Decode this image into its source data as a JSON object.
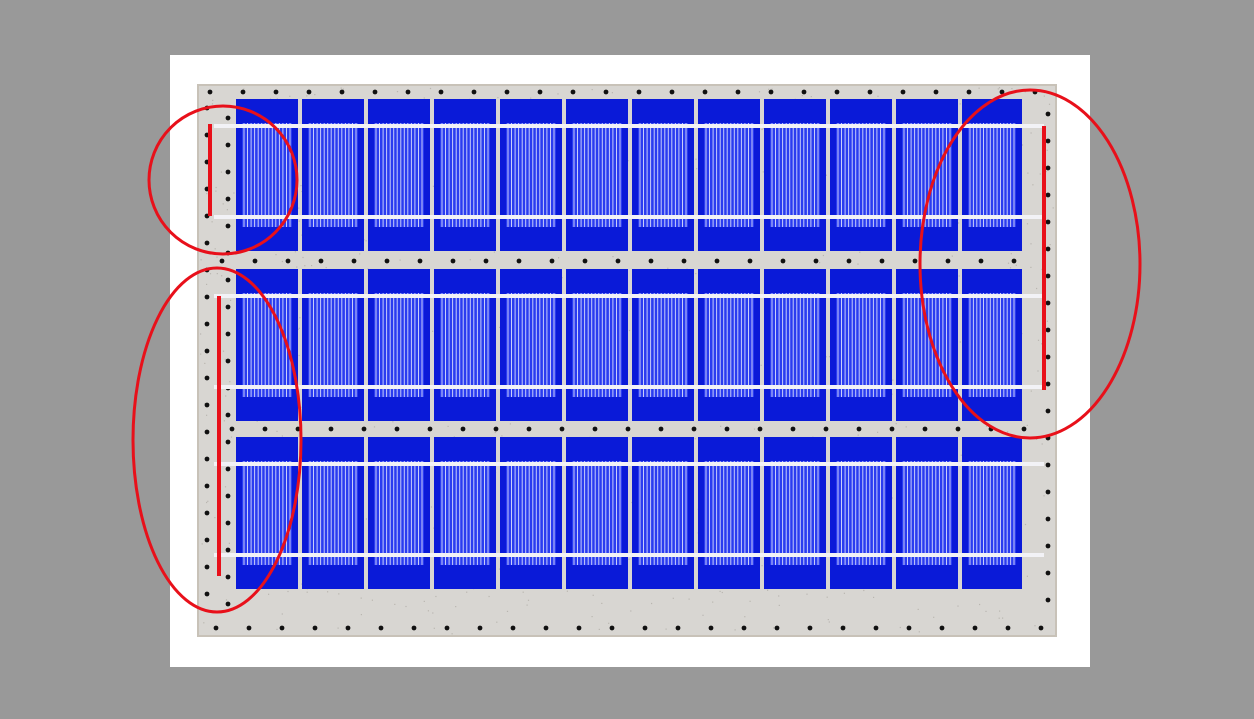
{
  "panel": {
    "rows": 3,
    "cells_per_row": 12,
    "colors": {
      "background": "#999999",
      "paper": "#ffffff",
      "substrate": "#d8d6d2",
      "cell": "#0a1ad8",
      "cell_inner": "#2a3cf0",
      "finger": "#c8cdfa",
      "busbar": "#f2f2f6",
      "mounting_hole": "#111111",
      "annotation": "#e8101a"
    }
  },
  "annotations": [
    {
      "name": "left-top-callout",
      "shape": "circle"
    },
    {
      "name": "left-bottom-callout",
      "shape": "ellipse"
    },
    {
      "name": "right-callout",
      "shape": "ellipse"
    }
  ]
}
